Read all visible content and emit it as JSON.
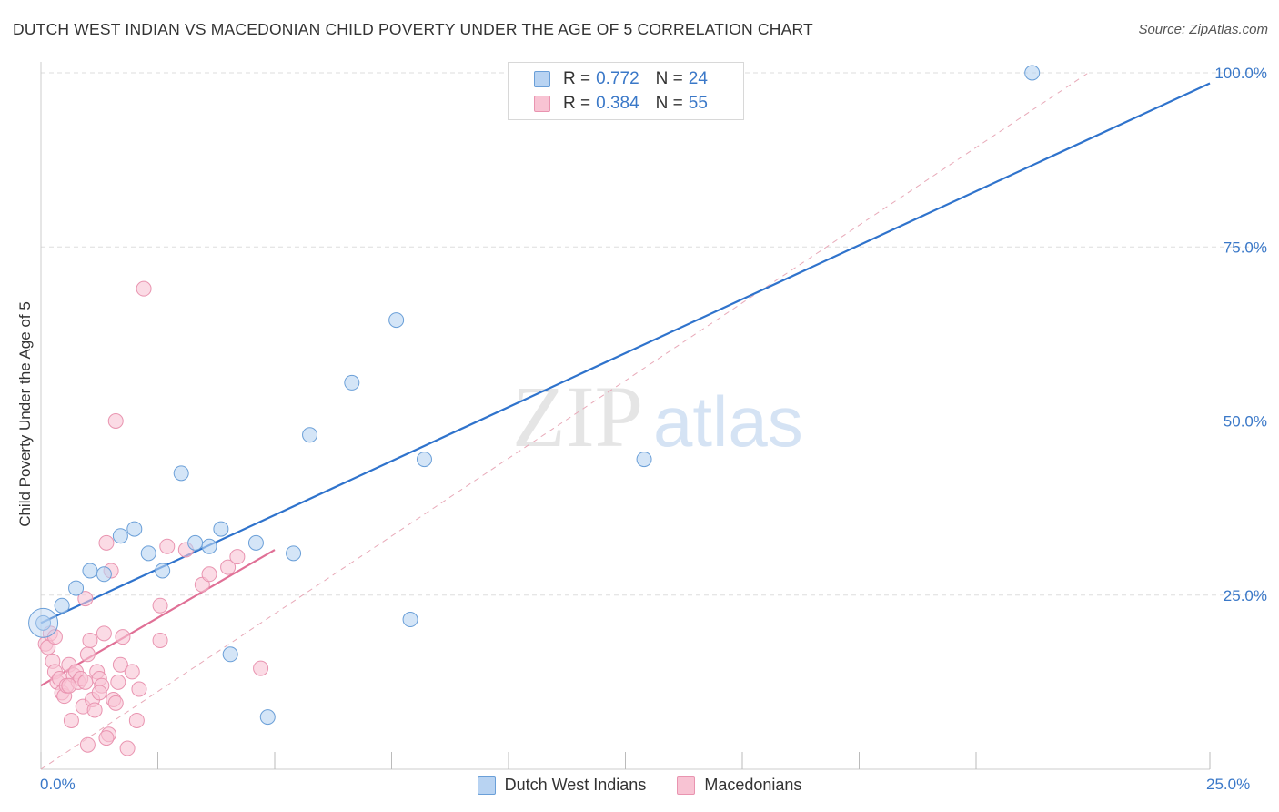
{
  "title": "DUTCH WEST INDIAN VS MACEDONIAN CHILD POVERTY UNDER THE AGE OF 5 CORRELATION CHART",
  "source": "Source: ZipAtlas.com",
  "watermark": {
    "zip": "ZIP",
    "atlas": "atlas"
  },
  "legend": {
    "r_label": "R =",
    "n_label": "N =",
    "rows": [
      {
        "series": "Dutch West Indians",
        "r": "0.772",
        "n": "24",
        "fill": "#b8d3f2",
        "stroke": "#6a9fd8"
      },
      {
        "series": "Macedonians",
        "r": "0.384",
        "n": "55",
        "fill": "#f8c3d3",
        "stroke": "#e994b0"
      }
    ]
  },
  "colors": {
    "blue_line": "#2f73cc",
    "pink_line": "#e07096",
    "dashed": "#e8a9b8",
    "grid": "#dddddd",
    "axis_text": "#3a78c8"
  },
  "chart_data": {
    "type": "scatter",
    "title": "DUTCH WEST INDIAN VS MACEDONIAN CHILD POVERTY UNDER THE AGE OF 5 CORRELATION CHART",
    "xlabel": "",
    "ylabel": "Child Poverty Under the Age of 5",
    "xlim": [
      0,
      25
    ],
    "ylim": [
      0,
      100
    ],
    "x_tick_labels": [
      "0.0%",
      "25.0%"
    ],
    "y_ticks": [
      25,
      50,
      75,
      100
    ],
    "y_tick_labels": [
      "25.0%",
      "50.0%",
      "75.0%",
      "100.0%"
    ],
    "grid": true,
    "legend_position": "top-center",
    "series": [
      {
        "name": "Dutch West Indians",
        "r": 0.772,
        "n": 24,
        "points": [
          [
            0.05,
            21.0
          ],
          [
            0.45,
            23.5
          ],
          [
            0.75,
            26.0
          ],
          [
            1.05,
            28.5
          ],
          [
            1.35,
            28.0
          ],
          [
            1.7,
            33.5
          ],
          [
            2.0,
            34.5
          ],
          [
            2.3,
            31.0
          ],
          [
            2.6,
            28.5
          ],
          [
            3.0,
            42.5
          ],
          [
            3.3,
            32.5
          ],
          [
            3.6,
            32.0
          ],
          [
            3.85,
            34.5
          ],
          [
            4.05,
            16.5
          ],
          [
            4.6,
            32.5
          ],
          [
            4.85,
            7.5
          ],
          [
            5.4,
            31.0
          ],
          [
            5.75,
            48.0
          ],
          [
            6.65,
            55.5
          ],
          [
            7.6,
            64.5
          ],
          [
            7.9,
            21.5
          ],
          [
            8.2,
            44.5
          ],
          [
            12.9,
            44.5
          ],
          [
            21.2,
            100.0
          ]
        ],
        "trend": {
          "x": [
            0,
            25
          ],
          "y": [
            21.0,
            98.5
          ]
        }
      },
      {
        "name": "Macedonians",
        "r": 0.384,
        "n": 55,
        "points": [
          [
            0.1,
            18.0
          ],
          [
            0.15,
            17.5
          ],
          [
            0.2,
            19.5
          ],
          [
            0.25,
            15.5
          ],
          [
            0.3,
            14.0
          ],
          [
            0.35,
            12.5
          ],
          [
            0.4,
            13.0
          ],
          [
            0.45,
            11.0
          ],
          [
            0.5,
            10.5
          ],
          [
            0.55,
            12.0
          ],
          [
            0.6,
            15.0
          ],
          [
            0.65,
            7.0
          ],
          [
            0.7,
            13.5
          ],
          [
            0.75,
            14.0
          ],
          [
            0.8,
            12.5
          ],
          [
            0.85,
            13.0
          ],
          [
            0.9,
            9.0
          ],
          [
            0.95,
            12.5
          ],
          [
            1.0,
            16.5
          ],
          [
            1.05,
            18.5
          ],
          [
            1.1,
            10.0
          ],
          [
            1.15,
            8.5
          ],
          [
            1.2,
            14.0
          ],
          [
            1.25,
            13.0
          ],
          [
            1.3,
            12.0
          ],
          [
            1.35,
            19.5
          ],
          [
            1.4,
            32.5
          ],
          [
            1.45,
            5.0
          ],
          [
            1.5,
            28.5
          ],
          [
            1.55,
            10.0
          ],
          [
            1.6,
            9.5
          ],
          [
            1.65,
            12.5
          ],
          [
            1.7,
            15.0
          ],
          [
            1.75,
            19.0
          ],
          [
            1.85,
            3.0
          ],
          [
            1.95,
            14.0
          ],
          [
            2.05,
            7.0
          ],
          [
            2.1,
            11.5
          ],
          [
            1.0,
            3.5
          ],
          [
            1.4,
            4.5
          ],
          [
            0.95,
            24.5
          ],
          [
            1.6,
            50.0
          ],
          [
            2.2,
            69.0
          ],
          [
            2.55,
            18.5
          ],
          [
            2.55,
            23.5
          ],
          [
            2.7,
            32.0
          ],
          [
            3.1,
            31.5
          ],
          [
            3.45,
            26.5
          ],
          [
            3.6,
            28.0
          ],
          [
            4.0,
            29.0
          ],
          [
            4.2,
            30.5
          ],
          [
            4.7,
            14.5
          ],
          [
            0.3,
            19.0
          ],
          [
            0.6,
            12.0
          ],
          [
            1.25,
            11.0
          ]
        ],
        "trend": {
          "x": [
            0,
            5
          ],
          "y": [
            12.0,
            31.5
          ]
        }
      }
    ],
    "reference_line": {
      "x": [
        0,
        22.4
      ],
      "y": [
        0,
        100
      ],
      "style": "dashed"
    }
  }
}
